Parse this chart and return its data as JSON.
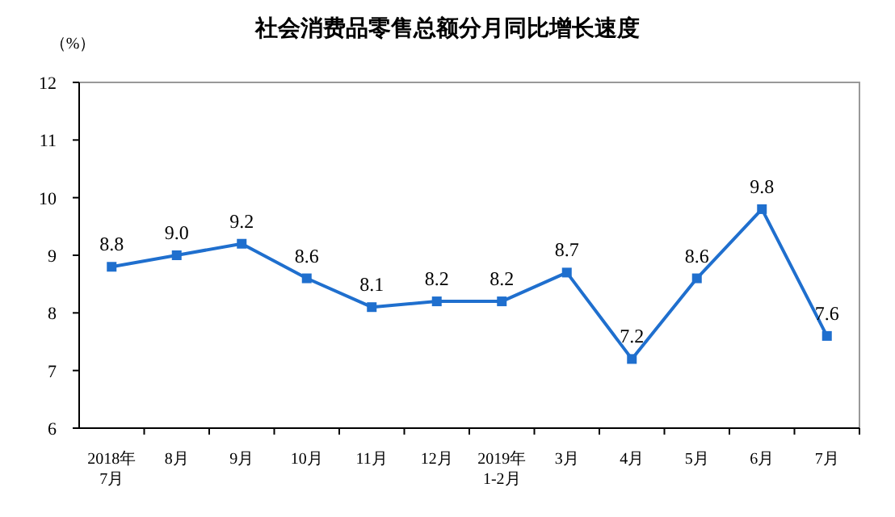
{
  "chart_data": {
    "type": "line",
    "title": "社会消费品零售总额分月同比增长速度",
    "ylabel": "（%）",
    "categories": [
      "2018年\n7月",
      "8月",
      "9月",
      "10月",
      "11月",
      "12月",
      "2019年\n1-2月",
      "3月",
      "4月",
      "5月",
      "6月",
      "7月"
    ],
    "series": [
      {
        "color": "#1f6fce",
        "values": [
          8.8,
          9.0,
          9.2,
          8.6,
          8.1,
          8.2,
          8.2,
          8.7,
          7.2,
          8.6,
          9.8,
          7.6
        ]
      }
    ],
    "ylim": [
      6,
      12
    ],
    "yticks": [
      6,
      7,
      8,
      9,
      10,
      11,
      12
    ],
    "marker": "square",
    "line_style": "solid",
    "grid": false,
    "value_labels": [
      "8.8",
      "9.0",
      "9.2",
      "8.6",
      "8.1",
      "8.2",
      "8.2",
      "8.7",
      "7.2",
      "8.6",
      "9.8",
      "7.6"
    ]
  }
}
